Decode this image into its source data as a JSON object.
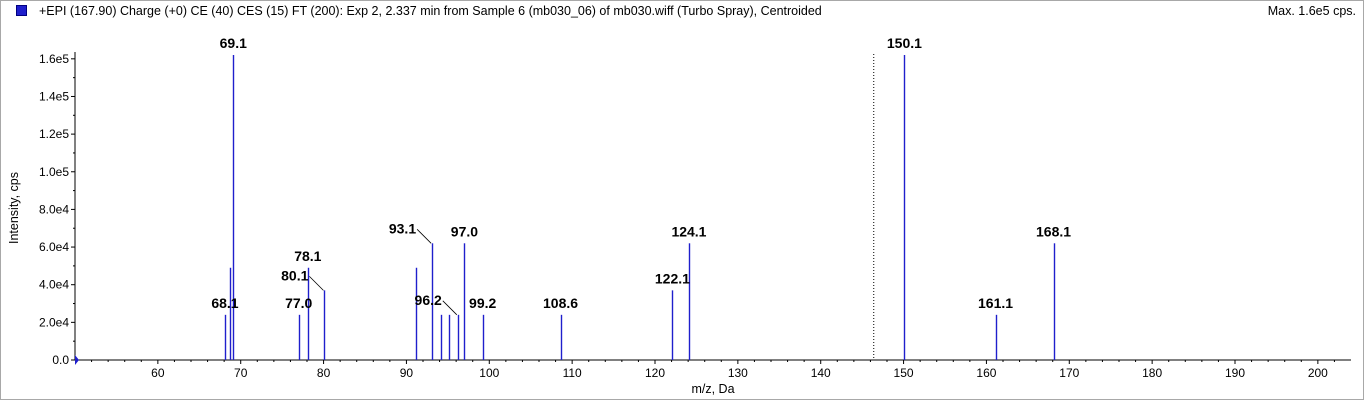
{
  "header": {
    "title": "+EPI (167.90) Charge (+0) CE (40) CES (15) FT (200): Exp 2, 2.337 min from Sample 6 (mb030_06) of mb030.wiff (Turbo Spray), Centroided",
    "max_label": "Max. 1.6e5 cps.",
    "series_color": "#1f1fcc"
  },
  "chart_data": {
    "type": "bar",
    "title": "+EPI (167.90) Charge (+0) CE (40) CES (15) FT (200): Exp 2, 2.337 min from Sample 6 (mb030_06) of mb030.wiff (Turbo Spray), Centroided",
    "xlabel": "m/z, Da",
    "ylabel": "Intensity, cps",
    "xlim": [
      50,
      204
    ],
    "ylim": [
      0,
      170000
    ],
    "x_ticks": [
      60,
      70,
      80,
      90,
      100,
      110,
      120,
      130,
      140,
      150,
      160,
      170,
      180,
      190,
      200
    ],
    "y_ticks": [
      {
        "value": 0,
        "label": "0.0"
      },
      {
        "value": 20000,
        "label": "2.0e4"
      },
      {
        "value": 40000,
        "label": "4.0e4"
      },
      {
        "value": 60000,
        "label": "6.0e4"
      },
      {
        "value": 80000,
        "label": "8.0e4"
      },
      {
        "value": 100000,
        "label": "1.0e5"
      },
      {
        "value": 120000,
        "label": "1.2e5"
      },
      {
        "value": 140000,
        "label": "1.4e5"
      },
      {
        "value": 160000,
        "label": "1.6e5"
      }
    ],
    "peaks": [
      {
        "mz": 68.1,
        "intensity": 24000
      },
      {
        "mz": 68.7,
        "intensity": 49000
      },
      {
        "mz": 69.1,
        "intensity": 162000
      },
      {
        "mz": 77.0,
        "intensity": 24000
      },
      {
        "mz": 78.1,
        "intensity": 49000
      },
      {
        "mz": 80.1,
        "intensity": 37000
      },
      {
        "mz": 91.1,
        "intensity": 49000
      },
      {
        "mz": 93.1,
        "intensity": 62000
      },
      {
        "mz": 94.2,
        "intensity": 24000
      },
      {
        "mz": 95.1,
        "intensity": 24000
      },
      {
        "mz": 96.2,
        "intensity": 24000
      },
      {
        "mz": 97.0,
        "intensity": 62000
      },
      {
        "mz": 99.2,
        "intensity": 24000
      },
      {
        "mz": 108.6,
        "intensity": 24000
      },
      {
        "mz": 122.1,
        "intensity": 37000
      },
      {
        "mz": 124.1,
        "intensity": 62000
      },
      {
        "mz": 150.1,
        "intensity": 162000
      },
      {
        "mz": 161.1,
        "intensity": 24000
      },
      {
        "mz": 168.1,
        "intensity": 62000
      }
    ],
    "annotations": [
      {
        "text": "69.1",
        "mz": 69.1,
        "intensity": 162000
      },
      {
        "text": "68.1",
        "mz": 68.1,
        "intensity": 24000
      },
      {
        "text": "78.1",
        "mz": 78.1,
        "intensity": 49000
      },
      {
        "text": "77.0",
        "mz": 77.0,
        "intensity": 24000
      },
      {
        "text": "80.1",
        "mz": 80.1,
        "intensity": 37000,
        "leader": true
      },
      {
        "text": "93.1",
        "mz": 93.1,
        "intensity": 62000,
        "leader": true
      },
      {
        "text": "97.0",
        "mz": 97.0,
        "intensity": 62000
      },
      {
        "text": "96.2",
        "mz": 96.2,
        "intensity": 24000,
        "leader": true
      },
      {
        "text": "99.2",
        "mz": 99.2,
        "intensity": 24000
      },
      {
        "text": "108.6",
        "mz": 108.6,
        "intensity": 24000
      },
      {
        "text": "122.1",
        "mz": 122.1,
        "intensity": 37000
      },
      {
        "text": "124.1",
        "mz": 124.1,
        "intensity": 62000
      },
      {
        "text": "150.1",
        "mz": 150.1,
        "intensity": 162000
      },
      {
        "text": "161.1",
        "mz": 161.1,
        "intensity": 24000
      },
      {
        "text": "168.1",
        "mz": 168.1,
        "intensity": 62000
      }
    ],
    "precursor_marker_mz": 146.4,
    "grid": false
  }
}
